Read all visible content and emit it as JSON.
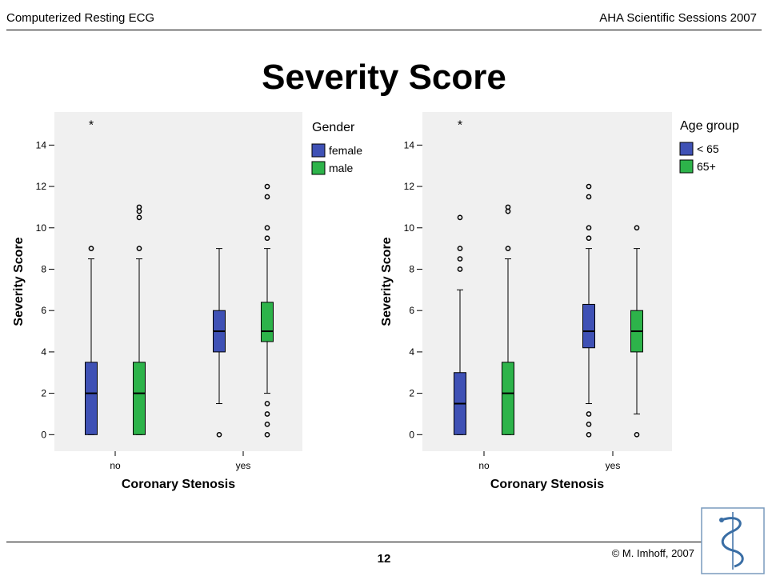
{
  "header": {
    "left": "Computerized Resting ECG",
    "right": "AHA Scientific Sessions 2007"
  },
  "title": "Severity Score",
  "footer": {
    "page": "12",
    "copyright": "© M. Imhoff, 2007"
  },
  "colors": {
    "blue": "#3f51b5",
    "green": "#2db34a",
    "plot_bg": "#f0f0f0"
  },
  "chart_data": [
    {
      "type": "box",
      "xlabel": "Coronary Stenosis",
      "ylabel": "Severity Score",
      "ylim": [
        -0.8,
        15.6
      ],
      "yticks": [
        0,
        2,
        4,
        6,
        8,
        10,
        12,
        14
      ],
      "categories": [
        "no",
        "yes"
      ],
      "legend": {
        "title": "Gender",
        "position": "right-top"
      },
      "series": [
        {
          "name": "female",
          "color": "#3f51b5",
          "boxes": [
            {
              "category": "no",
              "q1": 0,
              "median": 2,
              "q3": 3.5,
              "whisker_low": 0,
              "whisker_high": 8.5,
              "outliers": [
                9
              ],
              "extremes": [
                15
              ]
            },
            {
              "category": "yes",
              "q1": 4,
              "median": 5,
              "q3": 6,
              "whisker_low": 1.5,
              "whisker_high": 9,
              "outliers": [
                0
              ],
              "extremes": []
            }
          ]
        },
        {
          "name": "male",
          "color": "#2db34a",
          "boxes": [
            {
              "category": "no",
              "q1": 0,
              "median": 2,
              "q3": 3.5,
              "whisker_low": 0,
              "whisker_high": 8.5,
              "outliers": [
                9,
                10.5,
                10.8,
                11
              ],
              "extremes": []
            },
            {
              "category": "yes",
              "q1": 4.5,
              "median": 5,
              "q3": 6.4,
              "whisker_low": 2,
              "whisker_high": 9,
              "outliers": [
                0,
                0.5,
                1,
                1.5,
                9.5,
                10,
                11.5,
                12
              ],
              "extremes": []
            }
          ]
        }
      ]
    },
    {
      "type": "box",
      "xlabel": "Coronary Stenosis",
      "ylabel": "Severity Score",
      "ylim": [
        -0.8,
        15.6
      ],
      "yticks": [
        0,
        2,
        4,
        6,
        8,
        10,
        12,
        14
      ],
      "categories": [
        "no",
        "yes"
      ],
      "legend": {
        "title": "Age group",
        "position": "right-top"
      },
      "series": [
        {
          "name": "< 65",
          "color": "#3f51b5",
          "boxes": [
            {
              "category": "no",
              "q1": 0,
              "median": 1.5,
              "q3": 3,
              "whisker_low": 0,
              "whisker_high": 7,
              "outliers": [
                8,
                8.5,
                9,
                10.5
              ],
              "extremes": [
                15
              ]
            },
            {
              "category": "yes",
              "q1": 4.2,
              "median": 5,
              "q3": 6.3,
              "whisker_low": 1.5,
              "whisker_high": 9,
              "outliers": [
                0,
                0.5,
                1,
                9.5,
                10,
                11.5,
                12
              ],
              "extremes": []
            }
          ]
        },
        {
          "name": "65+",
          "color": "#2db34a",
          "boxes": [
            {
              "category": "no",
              "q1": 0,
              "median": 2,
              "q3": 3.5,
              "whisker_low": 0,
              "whisker_high": 8.5,
              "outliers": [
                9,
                10.8,
                11
              ],
              "extremes": []
            },
            {
              "category": "yes",
              "q1": 4,
              "median": 5,
              "q3": 6,
              "whisker_low": 1,
              "whisker_high": 9,
              "outliers": [
                0,
                10
              ],
              "extremes": []
            }
          ]
        }
      ]
    }
  ]
}
